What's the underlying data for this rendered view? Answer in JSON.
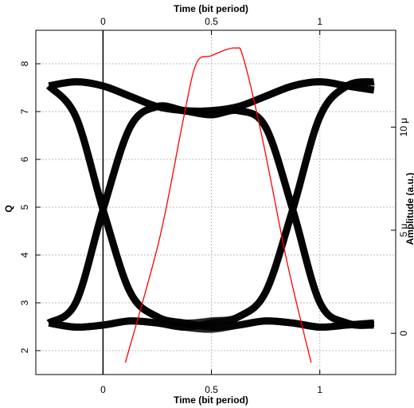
{
  "chart_data": {
    "type": "line",
    "xlabel": "Time (bit period)",
    "top_xlabel": "Time (bit period)",
    "ylabel": "Q",
    "y2label": "Amplitude (a.u.)",
    "xlim": [
      -0.31,
      1.35
    ],
    "xticks": [
      0,
      0.5,
      1
    ],
    "ylim": [
      1.5,
      8.7
    ],
    "yticks": [
      2,
      3,
      4,
      5,
      6,
      7,
      8
    ],
    "y2lim": [
      -2e-06,
      1.47e-05
    ],
    "y2ticks": [
      0,
      {
        "value": 5e-06,
        "label": "5 μ"
      },
      {
        "value": 1e-05,
        "label": "10 μ"
      }
    ],
    "grid": true,
    "x": [
      -0.25,
      -0.125,
      0,
      0.125,
      0.25,
      0.375,
      0.5,
      0.625,
      0.75,
      0.875,
      1,
      1.125,
      1.25
    ],
    "series": [
      {
        "color": "#000000",
        "axis": "y2",
        "values": [
          1.2e-05,
          1.22e-05,
          1.2e-05,
          1.15e-05,
          1.1e-05,
          1.08e-05,
          1.08e-05,
          1.1e-05,
          1.15e-05,
          1.2e-05,
          1.22e-05,
          1.2e-05,
          1.18e-05
        ]
      },
      {
        "color": "#000000",
        "axis": "y2",
        "values": [
          5e-07,
          3e-07,
          4e-07,
          6e-07,
          5e-07,
          3e-07,
          2e-07,
          4e-07,
          6e-07,
          5e-07,
          3e-07,
          4e-07,
          5e-07
        ]
      },
      {
        "color": "#000000",
        "axis": "y2",
        "values": [
          5e-07,
          1.5e-06,
          6e-06,
          1e-05,
          1.1e-05,
          1.08e-05,
          1.06e-05,
          1.08e-05,
          1e-05,
          6e-06,
          1.5e-06,
          5e-07,
          4e-07
        ]
      },
      {
        "color": "#000000",
        "axis": "y2",
        "values": [
          1.2e-05,
          1.05e-05,
          6e-06,
          2e-06,
          8e-07,
          5e-07,
          6e-07,
          8e-07,
          2e-06,
          6e-06,
          1.05e-05,
          1.2e-05,
          1.22e-05
        ]
      },
      {
        "color": "#000000",
        "axis": "y2",
        "values": [
          5e-07,
          1.5e-06,
          6e-06,
          1e-05,
          1.1e-05,
          1.08e-05,
          1.08e-05,
          1.1e-05,
          1.15e-05,
          1.2e-05,
          1.22e-05,
          1.2e-05,
          1.18e-05
        ]
      },
      {
        "color": "#000000",
        "axis": "y2",
        "values": [
          1.2e-05,
          1.22e-05,
          1.2e-05,
          1.15e-05,
          1.1e-05,
          1.08e-05,
          1.06e-05,
          1.08e-05,
          1e-05,
          6e-06,
          1.5e-06,
          5e-07,
          4e-07
        ]
      },
      {
        "color": "#000000",
        "axis": "y2",
        "values": [
          5e-07,
          3e-07,
          4e-07,
          6e-07,
          5e-07,
          3e-07,
          5e-07,
          8e-07,
          2e-06,
          6e-06,
          1.05e-05,
          1.2e-05,
          1.22e-05
        ]
      },
      {
        "color": "#000000",
        "axis": "y2",
        "values": [
          1.2e-05,
          1.05e-05,
          6e-06,
          2e-06,
          8e-07,
          5e-07,
          3e-07,
          4e-07,
          6e-07,
          5e-07,
          3e-07,
          4e-07,
          5e-07
        ]
      },
      {
        "color": "#ff0000",
        "x": [
          0.103,
          0.26,
          0.37,
          0.43,
          0.5,
          0.61,
          0.65,
          0.74,
          0.85,
          0.96
        ],
        "values": [
          1.75,
          4.33,
          6.83,
          8.0,
          8.17,
          8.33,
          8.08,
          6.33,
          3.83,
          1.75
        ]
      }
    ]
  }
}
